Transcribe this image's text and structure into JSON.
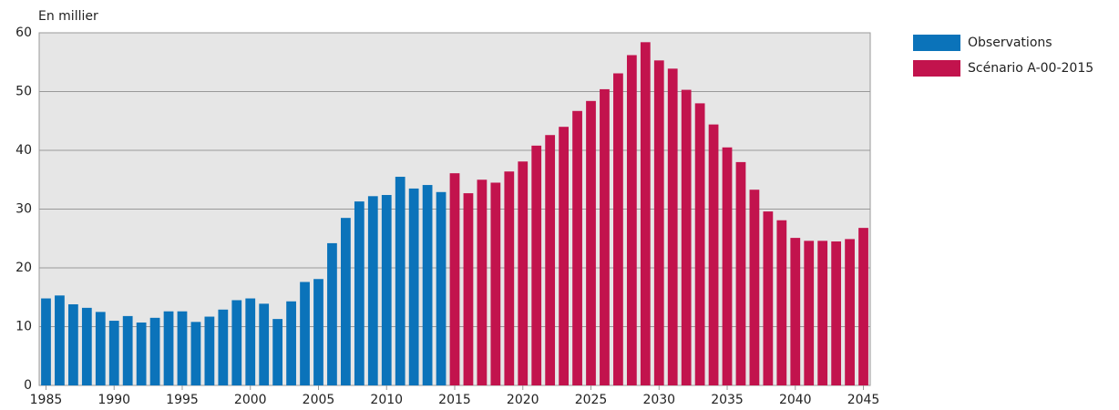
{
  "chart_data": {
    "type": "bar",
    "y_label": "En millier",
    "series": [
      {
        "name": "Observations",
        "color": "#0b73ba",
        "x": [
          1985,
          1986,
          1987,
          1988,
          1989,
          1990,
          1991,
          1992,
          1993,
          1994,
          1995,
          1996,
          1997,
          1998,
          1999,
          2000,
          2001,
          2002,
          2003,
          2004,
          2005,
          2006,
          2007,
          2008,
          2009,
          2010,
          2011,
          2012,
          2013,
          2014
        ],
        "values": [
          14.8,
          15.3,
          13.8,
          13.2,
          12.5,
          11.0,
          11.8,
          10.7,
          11.5,
          12.6,
          12.6,
          10.8,
          11.7,
          12.9,
          14.5,
          14.8,
          13.9,
          11.3,
          14.3,
          17.6,
          18.1,
          24.2,
          28.5,
          31.3,
          32.2,
          32.4,
          35.5,
          33.5,
          34.1,
          32.9
        ]
      },
      {
        "name": "Scénario A-00-2015",
        "color": "#c2134d",
        "x": [
          2015,
          2016,
          2017,
          2018,
          2019,
          2020,
          2021,
          2022,
          2023,
          2024,
          2025,
          2026,
          2027,
          2028,
          2029,
          2030,
          2031,
          2032,
          2033,
          2034,
          2035,
          2036,
          2037,
          2038,
          2039,
          2040,
          2041,
          2042,
          2043,
          2044,
          2045
        ],
        "values": [
          36.1,
          32.7,
          35.0,
          34.5,
          36.4,
          38.1,
          40.8,
          42.6,
          44.0,
          46.7,
          48.4,
          50.4,
          53.1,
          56.2,
          58.4,
          55.3,
          53.9,
          50.3,
          48.0,
          44.4,
          40.5,
          38.0,
          33.3,
          29.6,
          28.1,
          25.1,
          24.6,
          24.6,
          24.5,
          24.9,
          26.8
        ]
      }
    ],
    "xlim": [
      1984.5,
      2045.5
    ],
    "xticks": [
      1985,
      1990,
      1995,
      2000,
      2005,
      2010,
      2015,
      2020,
      2025,
      2030,
      2035,
      2040,
      2045
    ],
    "ylim": [
      0,
      60
    ],
    "yticks": [
      0,
      10,
      20,
      30,
      40,
      50,
      60
    ],
    "grid": true,
    "legend": "right"
  }
}
